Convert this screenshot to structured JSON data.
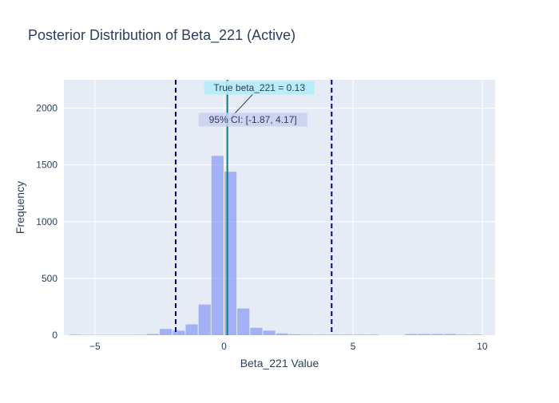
{
  "chart_data": {
    "type": "bar",
    "title": "Posterior Distribution of Beta_221 (Active)",
    "xlabel": "Beta_221 Value",
    "ylabel": "Frequency",
    "xlim": [
      -6.2,
      10.5
    ],
    "ylim": [
      0,
      2250
    ],
    "x_ticks": [
      -5,
      0,
      5,
      10
    ],
    "y_ticks": [
      0,
      500,
      1000,
      1500,
      2000
    ],
    "grid": true,
    "bin_width": 0.5,
    "bins": [
      {
        "x0": -6.0,
        "x1": -5.5,
        "count": 5
      },
      {
        "x0": -5.5,
        "x1": -5.0,
        "count": 2
      },
      {
        "x0": -5.0,
        "x1": -4.5,
        "count": 2
      },
      {
        "x0": -4.5,
        "x1": -4.0,
        "count": 2
      },
      {
        "x0": -4.0,
        "x1": -3.5,
        "count": 2
      },
      {
        "x0": -3.5,
        "x1": -3.0,
        "count": 3
      },
      {
        "x0": -3.0,
        "x1": -2.5,
        "count": 10
      },
      {
        "x0": -2.5,
        "x1": -2.0,
        "count": 55
      },
      {
        "x0": -2.0,
        "x1": -1.5,
        "count": 40
      },
      {
        "x0": -1.5,
        "x1": -1.0,
        "count": 95
      },
      {
        "x0": -1.0,
        "x1": -0.5,
        "count": 270
      },
      {
        "x0": -0.5,
        "x1": 0.0,
        "count": 1580
      },
      {
        "x0": 0.0,
        "x1": 0.5,
        "count": 1440
      },
      {
        "x0": 0.5,
        "x1": 1.0,
        "count": 235
      },
      {
        "x0": 1.0,
        "x1": 1.5,
        "count": 65
      },
      {
        "x0": 1.5,
        "x1": 2.0,
        "count": 40
      },
      {
        "x0": 2.0,
        "x1": 2.5,
        "count": 15
      },
      {
        "x0": 2.5,
        "x1": 3.0,
        "count": 8
      },
      {
        "x0": 3.0,
        "x1": 3.5,
        "count": 5
      },
      {
        "x0": 3.5,
        "x1": 4.0,
        "count": 5
      },
      {
        "x0": 4.0,
        "x1": 4.5,
        "count": 5
      },
      {
        "x0": 4.5,
        "x1": 5.0,
        "count": 5
      },
      {
        "x0": 5.0,
        "x1": 5.5,
        "count": 5
      },
      {
        "x0": 5.5,
        "x1": 6.0,
        "count": 5
      },
      {
        "x0": 7.0,
        "x1": 7.5,
        "count": 10
      },
      {
        "x0": 7.5,
        "x1": 8.0,
        "count": 10
      },
      {
        "x0": 8.0,
        "x1": 8.5,
        "count": 10
      },
      {
        "x0": 8.5,
        "x1": 9.0,
        "count": 10
      },
      {
        "x0": 9.0,
        "x1": 9.5,
        "count": 5
      },
      {
        "x0": 9.5,
        "x1": 10.0,
        "count": 5
      }
    ],
    "true_value": 0.13,
    "ci": [
      -1.87,
      4.17
    ],
    "annotations": {
      "true_label": "True beta_221 = 0.13",
      "ci_label": "95% CI: [-1.87, 4.17]"
    },
    "colors": {
      "bar": "#6b7ff5",
      "true_line": "#0e7c86",
      "ci_line": "#00008b",
      "true_label_bg": "#b3ecf7",
      "ci_label_bg": "#c9cff0",
      "plot_bg": "#e5ecf6",
      "grid": "#ffffff",
      "text": "#2a3f5f"
    }
  }
}
